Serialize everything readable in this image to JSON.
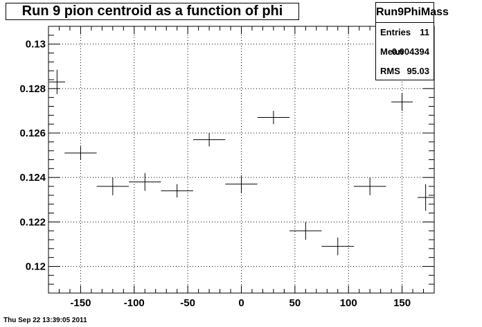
{
  "title": "Run 9 pion centroid as a function of phi",
  "stats": {
    "name": "Run9PhiMass",
    "rows": [
      {
        "label": "Entries",
        "value": "11"
      },
      {
        "label": "Mean",
        "value": "0.004394"
      },
      {
        "label": "RMS",
        "value": "95.03"
      }
    ]
  },
  "timestamp": "Thu Sep 22 13:39:05 2011",
  "chart_data": {
    "type": "scatter",
    "title": "Run 9 pion centroid as a function of phi",
    "xlabel": "",
    "ylabel": "",
    "xlim": [
      -180,
      180
    ],
    "ylim": [
      0.1188,
      0.1308
    ],
    "grid": true,
    "x_ticks": [
      -150,
      -100,
      -50,
      0,
      50,
      100,
      150
    ],
    "x_tick_labels": [
      "-150",
      "-100",
      "-50",
      "0",
      "50",
      "100",
      "150"
    ],
    "y_ticks": [
      0.12,
      0.122,
      0.124,
      0.126,
      0.128,
      0.13
    ],
    "y_tick_labels": [
      "0.12",
      "0.122",
      "0.124",
      "0.126",
      "0.128",
      "0.13"
    ],
    "points": [
      {
        "x": -172,
        "y": 0.1283,
        "xerr": 7.5,
        "yerr": 0.00055
      },
      {
        "x": -150,
        "y": 0.1251,
        "xerr": 15,
        "yerr": 0.0003
      },
      {
        "x": -120,
        "y": 0.1236,
        "xerr": 15,
        "yerr": 0.0004
      },
      {
        "x": -90,
        "y": 0.1238,
        "xerr": 15,
        "yerr": 0.0004
      },
      {
        "x": -60,
        "y": 0.1234,
        "xerr": 15,
        "yerr": 0.0003
      },
      {
        "x": -30,
        "y": 0.1257,
        "xerr": 15,
        "yerr": 0.0003
      },
      {
        "x": 0,
        "y": 0.1237,
        "xerr": 15,
        "yerr": 0.0004
      },
      {
        "x": 30,
        "y": 0.1267,
        "xerr": 15,
        "yerr": 0.0003
      },
      {
        "x": 60,
        "y": 0.1216,
        "xerr": 15,
        "yerr": 0.0004
      },
      {
        "x": 90,
        "y": 0.1209,
        "xerr": 15,
        "yerr": 0.0004
      },
      {
        "x": 120,
        "y": 0.1236,
        "xerr": 15,
        "yerr": 0.0004
      },
      {
        "x": 150,
        "y": 0.1274,
        "xerr": 10,
        "yerr": 0.0004
      },
      {
        "x": 172,
        "y": 0.1231,
        "xerr": 7.5,
        "yerr": 0.0006
      }
    ]
  }
}
